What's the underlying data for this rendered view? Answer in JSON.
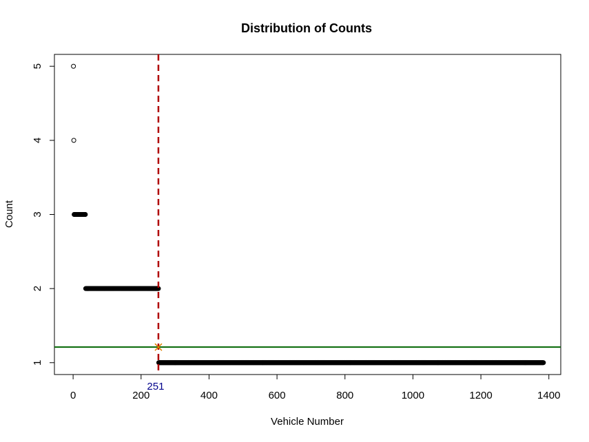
{
  "chart_data": {
    "type": "scatter",
    "title": "Distribution of Counts",
    "xlabel": "Vehicle Number",
    "ylabel": "Count",
    "xlim": [
      -55,
      1435
    ],
    "ylim": [
      0.84,
      5.16
    ],
    "x_ticks": [
      0,
      200,
      400,
      600,
      800,
      1000,
      1200,
      1400
    ],
    "y_ticks": [
      1,
      2,
      3,
      4,
      5
    ],
    "grid": false,
    "legend": "none",
    "series": [
      {
        "marker": "circle",
        "segments": [
          {
            "x_start": 1,
            "x_end": 1,
            "y": 5
          },
          {
            "x_start": 2,
            "x_end": 2,
            "y": 4
          },
          {
            "x_start": 3,
            "x_end": 36,
            "y": 3
          },
          {
            "x_start": 37,
            "x_end": 251,
            "y": 2
          },
          {
            "x_start": 252,
            "x_end": 1384,
            "y": 1
          }
        ]
      }
    ],
    "reference_lines": {
      "vertical": {
        "x": 251,
        "color": "#b00000",
        "style": "dashed"
      },
      "horizontal": {
        "y": 1.21,
        "color": "#006400",
        "style": "solid"
      }
    },
    "annotation": {
      "marker": "x",
      "x": 251,
      "y": 1.21,
      "marker_color": "#e08000",
      "label": "251",
      "label_color": "#00008b"
    }
  }
}
